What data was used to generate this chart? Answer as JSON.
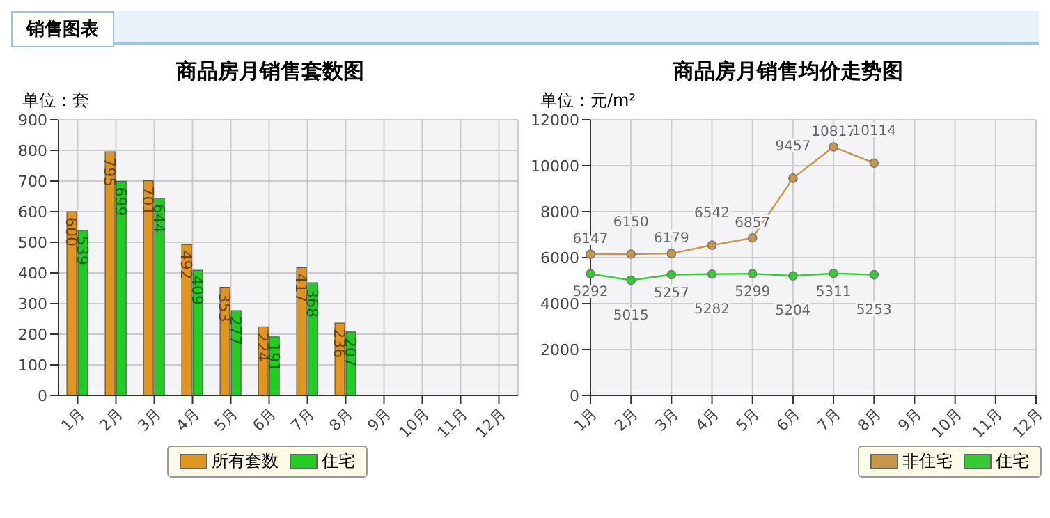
{
  "chart_data": [
    {
      "type": "bar",
      "title": "商品房月销售套数图",
      "ylabel": "单位：套",
      "annotations": [
        "销售图表"
      ],
      "categories": [
        "1月",
        "2月",
        "3月",
        "4月",
        "5月",
        "6月",
        "7月",
        "8月",
        "9月",
        "10月",
        "11月",
        "12月"
      ],
      "series": [
        {
          "name": "所有套数",
          "color": "#e0961e",
          "values": [
            600,
            795,
            701,
            492,
            353,
            224,
            417,
            236,
            null,
            null,
            null,
            null
          ]
        },
        {
          "name": "住宅",
          "color": "#22cc22",
          "values": [
            539,
            699,
            644,
            409,
            277,
            191,
            368,
            207,
            null,
            null,
            null,
            null
          ]
        }
      ],
      "ylim": [
        0,
        900
      ],
      "yticks": [
        0,
        100,
        200,
        300,
        400,
        500,
        600,
        700,
        800,
        900
      ],
      "grid": true,
      "legend": "bottom",
      "data_labels": true
    },
    {
      "type": "line",
      "title": "商品房月销售均价走势图",
      "ylabel": "单位：元/m²",
      "categories": [
        "1月",
        "2月",
        "3月",
        "4月",
        "5月",
        "6月",
        "7月",
        "8月",
        "9月",
        "10月",
        "11月",
        "12月"
      ],
      "series": [
        {
          "name": "非住宅",
          "color": "#c8964a",
          "values": [
            6147,
            6150,
            6179,
            6542,
            6857,
            9457,
            10817,
            10114,
            null,
            null,
            null,
            null
          ]
        },
        {
          "name": "住宅",
          "color": "#33cc33",
          "values": [
            5292,
            5015,
            5257,
            5282,
            5299,
            5204,
            5311,
            5253,
            null,
            null,
            null,
            null
          ]
        }
      ],
      "ylim": [
        0,
        12000
      ],
      "yticks": [
        0,
        2000,
        4000,
        6000,
        8000,
        10000,
        12000
      ],
      "grid": true,
      "legend": "bottom right",
      "data_labels": true,
      "marker": "circle"
    }
  ]
}
